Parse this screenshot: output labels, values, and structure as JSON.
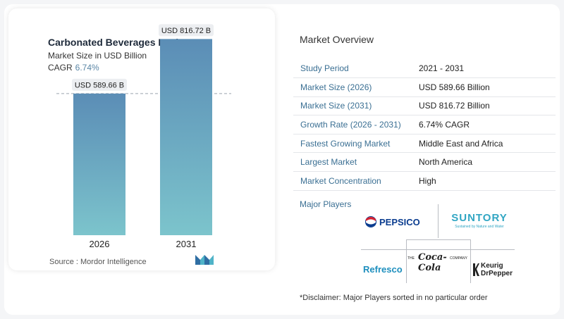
{
  "header": {
    "title": "Carbonated Beverages Market",
    "subtitle": "Market Size in USD Billion",
    "cagr_label": "CAGR",
    "cagr_value": "6.74%"
  },
  "chart_data": {
    "type": "bar",
    "categories": [
      "2026",
      "2031"
    ],
    "values": [
      589.66,
      816.72
    ],
    "value_labels": [
      "USD 589.66 B",
      "USD 816.72 B"
    ],
    "title": "Carbonated Beverages Market",
    "subtitle": "Market Size in USD Billion",
    "xlabel": "",
    "ylabel": "",
    "ylim": [
      0,
      900
    ],
    "grid": false,
    "reference_line": {
      "value": 589.66,
      "style": "dashed"
    },
    "colors": {
      "bar_top": "#5b8db6",
      "bar_bottom": "#7cc4cc",
      "label_bg": "#eceef1"
    }
  },
  "source": "Source :  Mordor Intelligence",
  "overview": {
    "title": "Market Overview",
    "rows": [
      {
        "label": "Study Period",
        "value": "2021 - 2031"
      },
      {
        "label": "Market Size (2026)",
        "value": "USD 589.66 Billion"
      },
      {
        "label": "Market Size (2031)",
        "value": "USD 816.72 Billion"
      },
      {
        "label": "Growth Rate (2026 - 2031)",
        "value": "6.74% CAGR"
      },
      {
        "label": "Fastest Growing Market",
        "value": "Middle East and Africa"
      },
      {
        "label": "Largest Market",
        "value": "North America"
      },
      {
        "label": "Market Concentration",
        "value": "High"
      }
    ],
    "players_title": "Major Players",
    "players": {
      "pepsico": "PEPSICO",
      "suntory": "SUNTORY",
      "suntory_tagline": "Sustained by Nature and Water",
      "coke_the": "THE",
      "coke_script": "Coca-Cola",
      "coke_company": "COMPANY",
      "refresco": "Refresco",
      "keurig_1": "Keurig",
      "keurig_2": "DrPepper"
    },
    "disclaimer": "*Disclaimer: Major Players sorted in no particular order"
  },
  "colors": {
    "accent": "#3a6f93",
    "cagr": "#5b87a6"
  }
}
